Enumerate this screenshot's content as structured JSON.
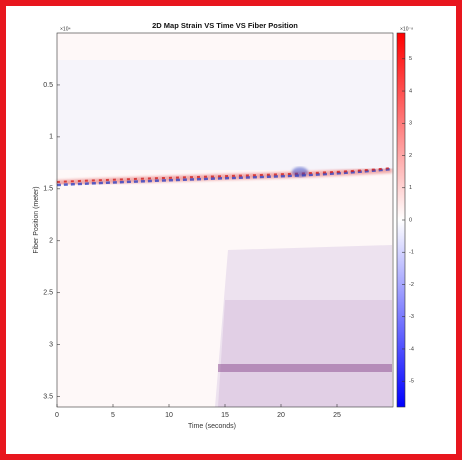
{
  "chart_data": {
    "type": "heatmap",
    "title": "2D Map Strain VS Time VS Fiber Position",
    "x_label": "Time (seconds)",
    "y_label": "Fiber Position (meter)",
    "xlim": [
      0,
      30
    ],
    "xticks": [
      0,
      5,
      10,
      15,
      20,
      25
    ],
    "ylim": [
      0,
      3.6
    ],
    "yticks": [
      0.5,
      1,
      1.5,
      2,
      2.5,
      3,
      3.5
    ],
    "y_reversed": true,
    "y_exponent": "×10⁴",
    "clim": [
      -5.8,
      5.8
    ],
    "cticks": [
      -5,
      -4,
      -3,
      -2,
      -1,
      0,
      1,
      2,
      3,
      4,
      5
    ],
    "c_exponent": "×10⁻⁸",
    "colormap": [
      "#0000ff",
      "#ffffff",
      "#ff0000"
    ]
  }
}
